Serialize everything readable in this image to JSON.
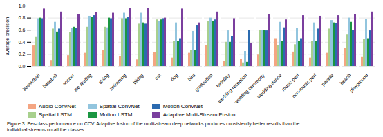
{
  "chart_data": {
    "type": "bar",
    "categories": [
      "basketball",
      "baseball",
      "soccer",
      "ice skating",
      "skiing",
      "swimming",
      "biking",
      "cat",
      "dog",
      "bird",
      "graduation",
      "birthday",
      "wedding reception",
      "wedding ceremony",
      "wedding dance",
      "music perf",
      "non-music perf",
      "parade",
      "beach",
      "playground"
    ],
    "series": [
      {
        "name": "Audio ConvNet",
        "color": "#f4a582",
        "values": [
          0.34,
          0.1,
          0.18,
          0.22,
          0.27,
          0.17,
          0.11,
          0.23,
          0.14,
          0.22,
          0.35,
          0.08,
          0.12,
          0.19,
          0.46,
          0.24,
          0.14,
          0.22,
          0.3,
          0.15
        ]
      },
      {
        "name": "Spatial LSTM",
        "color": "#a8d08d",
        "values": [
          0.48,
          0.62,
          0.56,
          0.65,
          0.65,
          0.79,
          0.7,
          0.77,
          0.42,
          0.27,
          0.74,
          0.4,
          0.06,
          0.6,
          0.35,
          0.36,
          0.41,
          0.62,
          0.52,
          0.45
        ]
      },
      {
        "name": "Spatial ConvNet",
        "color": "#92c5de",
        "values": [
          0.79,
          0.73,
          0.63,
          0.83,
          0.64,
          0.88,
          0.88,
          0.74,
          0.72,
          0.58,
          0.8,
          0.59,
          0.25,
          0.6,
          0.73,
          0.63,
          0.72,
          0.76,
          0.8,
          0.78
        ]
      },
      {
        "name": "Motion LSTM",
        "color": "#1a9641",
        "values": [
          0.8,
          0.57,
          0.65,
          0.81,
          0.8,
          0.79,
          0.72,
          0.77,
          0.42,
          0.27,
          0.75,
          0.4,
          0.07,
          0.6,
          0.41,
          0.42,
          0.42,
          0.72,
          0.73,
          0.46
        ]
      },
      {
        "name": "Motion ConvNet",
        "color": "#2b6bb0",
        "values": [
          0.79,
          0.62,
          0.63,
          0.84,
          0.79,
          0.81,
          0.7,
          0.79,
          0.46,
          0.67,
          0.77,
          0.5,
          0.6,
          0.59,
          0.64,
          0.46,
          0.62,
          0.71,
          0.6,
          0.59
        ]
      },
      {
        "name": "Adaptive Multi-Stream Fusion",
        "color": "#7b3f9e",
        "values": [
          0.95,
          0.9,
          0.86,
          0.89,
          0.88,
          0.96,
          0.96,
          0.8,
          0.95,
          0.72,
          0.9,
          0.79,
          0.38,
          0.86,
          0.77,
          0.84,
          0.83,
          0.84,
          0.86,
          0.9
        ]
      }
    ],
    "ylabel": "average precision",
    "ylim": [
      0.0,
      1.0
    ],
    "yticks": [
      {
        "value": 0,
        "label": "0.0"
      },
      0.2,
      0.4,
      0.6,
      0.8,
      {
        "value": 1,
        "label": "1.0"
      }
    ],
    "grid": true,
    "legend": "bottom",
    "caption": [
      "Figure 3. Per-class performance on CCV. Adaptive fusion of the multi-stream deep networks produces consistently better results than the",
      "individual streams on all the classes."
    ]
  }
}
